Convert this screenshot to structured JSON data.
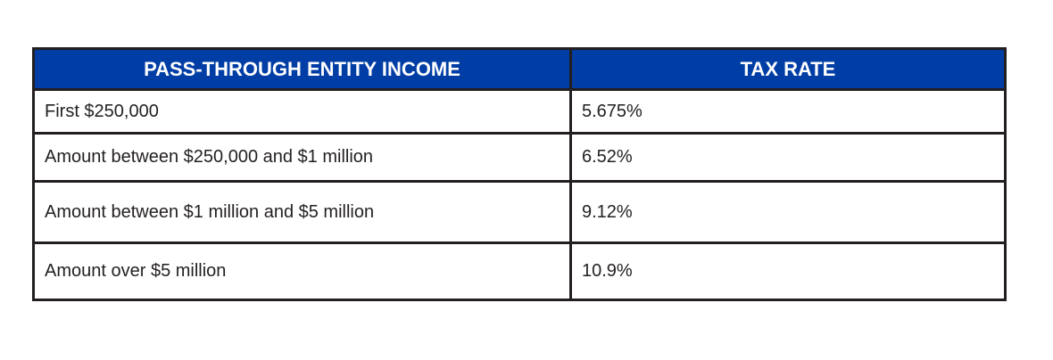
{
  "table": {
    "headers": [
      "PASS-THROUGH ENTITY INCOME",
      "TAX RATE"
    ],
    "rows": [
      [
        "First $250,000",
        "5.675%"
      ],
      [
        "Amount between $250,000 and $1 million",
        "6.52%"
      ],
      [
        "Amount between $1 million and $5 million",
        "9.12%"
      ],
      [
        "Amount over $5 million",
        "10.9%"
      ]
    ],
    "header_color": "#003da5",
    "border_color": "#231f20"
  }
}
